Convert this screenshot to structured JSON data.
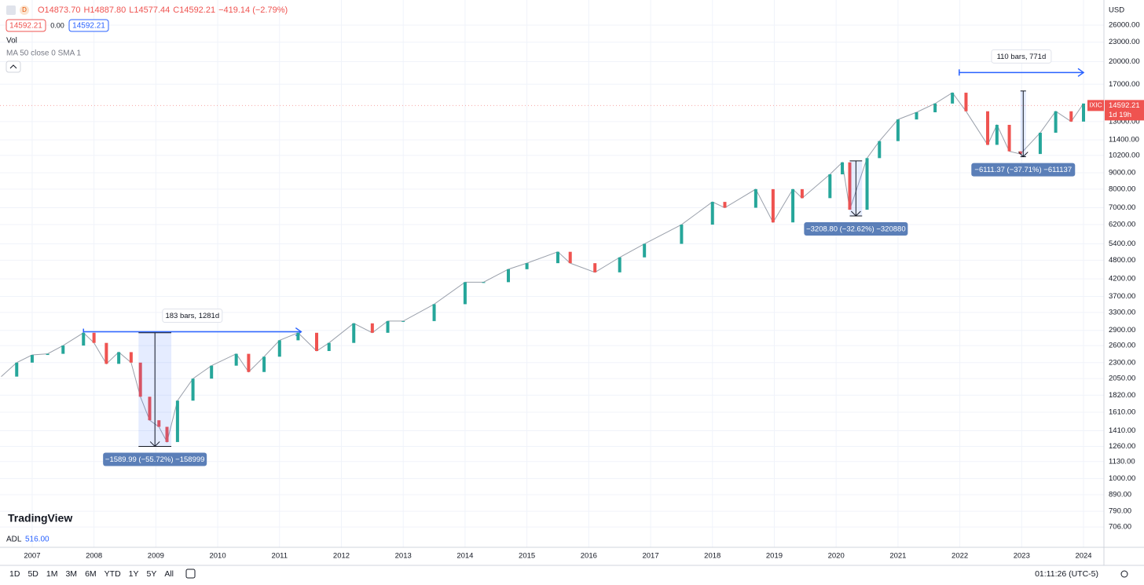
{
  "header": {
    "symbol_badge": "D",
    "ohlc": {
      "open": "O14873.70",
      "high": "H14887.80",
      "low": "L14577.44",
      "close": "C14592.21",
      "change": "−419.14 (−2.79%)"
    },
    "sell": "14592.21",
    "spread": "0.00",
    "buy": "14592.21",
    "vol": "Vol",
    "ma": "MA 50 close 0 SMA 1",
    "adl_label": "ADL",
    "adl_value": "516.00",
    "logo": "TradingView",
    "currency": "USD"
  },
  "toolbar": {
    "ranges": [
      "1D",
      "5D",
      "1M",
      "3M",
      "6M",
      "YTD",
      "1Y",
      "5Y",
      "All"
    ],
    "clock": "01:11:26 (UTC-5)"
  },
  "chart_data": {
    "type": "candlestick",
    "log_scale": true,
    "grid": true,
    "up_color": "#26a69a",
    "down_color": "#ef5350",
    "xlim": [
      2006.48,
      2024.33
    ],
    "xticks": [
      2007,
      2008,
      2009,
      2010,
      2011,
      2012,
      2013,
      2014,
      2015,
      2016,
      2017,
      2018,
      2019,
      2020,
      2021,
      2022,
      2023,
      2024
    ],
    "ylim": [
      610,
      30280
    ],
    "yticks": [
      {
        "value": 26000,
        "label": "26000.00"
      },
      {
        "value": 23000,
        "label": "23000.00"
      },
      {
        "value": 20000,
        "label": "20000.00"
      },
      {
        "value": 17000,
        "label": "17000.00"
      },
      {
        "value": 13000,
        "label": "13000.00"
      },
      {
        "value": 11400,
        "label": "11400.00"
      },
      {
        "value": 10200,
        "label": "10200.00"
      },
      {
        "value": 9000,
        "label": "9000.00"
      },
      {
        "value": 8000,
        "label": "8000.00"
      },
      {
        "value": 7000,
        "label": "7000.00"
      },
      {
        "value": 6200,
        "label": "6200.00"
      },
      {
        "value": 5400,
        "label": "5400.00"
      },
      {
        "value": 4800,
        "label": "4800.00"
      },
      {
        "value": 4200,
        "label": "4200.00"
      },
      {
        "value": 3700,
        "label": "3700.00"
      },
      {
        "value": 3300,
        "label": "3300.00"
      },
      {
        "value": 2900,
        "label": "2900.00"
      },
      {
        "value": 2600,
        "label": "2600.00"
      },
      {
        "value": 2300,
        "label": "2300.00"
      },
      {
        "value": 2050,
        "label": "2050.00"
      },
      {
        "value": 1820,
        "label": "1820.00"
      },
      {
        "value": 1610,
        "label": "1610.00"
      },
      {
        "value": 1410,
        "label": "1410.00"
      },
      {
        "value": 1260,
        "label": "1260.00"
      },
      {
        "value": 1130,
        "label": "1130.00"
      },
      {
        "value": 1000,
        "label": "1000.00"
      },
      {
        "value": 890,
        "label": "890.00"
      },
      {
        "value": 790,
        "label": "790.00"
      },
      {
        "value": 706,
        "label": "706.00"
      }
    ],
    "series": [
      {
        "name": "IXIC",
        "color": "#ef5350",
        "x": [
          2006.5,
          2006.75,
          2007.0,
          2007.25,
          2007.5,
          2007.83,
          2008.0,
          2008.2,
          2008.4,
          2008.6,
          2008.75,
          2008.9,
          2009.05,
          2009.18,
          2009.35,
          2009.6,
          2009.9,
          2010.3,
          2010.5,
          2010.75,
          2011.0,
          2011.3,
          2011.6,
          2011.8,
          2012.2,
          2012.5,
          2012.75,
          2013.0,
          2013.5,
          2014.0,
          2014.3,
          2014.7,
          2015.0,
          2015.5,
          2015.7,
          2016.1,
          2016.5,
          2016.9,
          2017.5,
          2018.0,
          2018.2,
          2018.7,
          2018.98,
          2019.3,
          2019.45,
          2019.9,
          2020.1,
          2020.22,
          2020.5,
          2020.7,
          2021.0,
          2021.3,
          2021.6,
          2021.88,
          2022.1,
          2022.45,
          2022.6,
          2022.8,
          2022.98,
          2023.3,
          2023.55,
          2023.8,
          2024.0
        ],
        "values": [
          2080,
          2300,
          2430,
          2450,
          2600,
          2850,
          2650,
          2280,
          2480,
          2300,
          1800,
          1520,
          1450,
          1300,
          1750,
          2050,
          2250,
          2450,
          2150,
          2400,
          2700,
          2850,
          2500,
          2650,
          3050,
          2850,
          3100,
          3100,
          3500,
          4100,
          4100,
          4500,
          4700,
          5100,
          4700,
          4400,
          4900,
          5400,
          6200,
          7300,
          7000,
          8000,
          6300,
          8000,
          7500,
          8900,
          9700,
          6900,
          10000,
          11300,
          13200,
          13900,
          14800,
          16000,
          14000,
          11000,
          12700,
          10500,
          10300,
          12000,
          14000,
          13000,
          14800
        ]
      }
    ],
    "last_price": {
      "name": "IXIC",
      "value": 14592.21,
      "label": "14592.21",
      "countdown": "1d 19h"
    },
    "ranges": [
      {
        "label": "183 bars, 1281d",
        "x0": 2007.83,
        "x1": 2011.35,
        "y": 2870
      },
      {
        "label": "110 bars, 771d",
        "x0": 2021.99,
        "x1": 2024.0,
        "y": 18500
      }
    ],
    "drops": [
      {
        "label": "−1589.99 (−55.72%) −158999",
        "x0": 2008.72,
        "x1": 2009.25,
        "from": 2850,
        "to": 1260
      },
      {
        "label": "−3208.80 (−32.62%) −320880",
        "x0": 2020.22,
        "x1": 2020.42,
        "from": 9800,
        "to": 6600
      },
      {
        "label": "−6111.37 (−37.71%) −611137",
        "x0": 2022.98,
        "x1": 2023.07,
        "from": 16200,
        "to": 10100
      }
    ]
  }
}
